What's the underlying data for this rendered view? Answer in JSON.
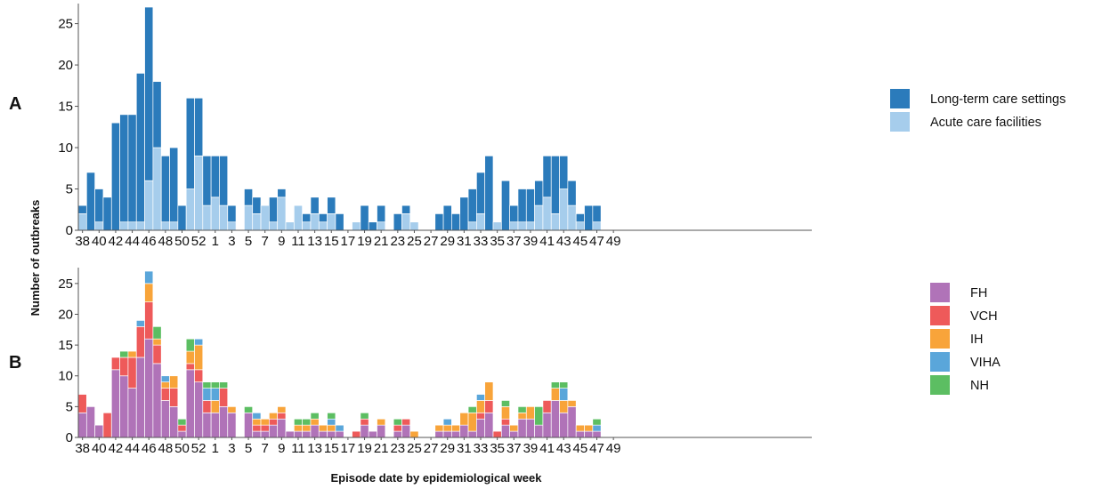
{
  "colors": {
    "ltc": "#2b7bbb",
    "acute": "#a6cdec",
    "FH": "#b073b8",
    "VCH": "#ee5a5a",
    "IH": "#f8a43a",
    "VIHA": "#5aa6da",
    "NH": "#5cbe62",
    "axis": "#555555",
    "bar_edge": "#ffffff"
  },
  "chart_data": [
    {
      "panel": "A",
      "type": "bar",
      "stacked": true,
      "ylabel": "Number of outbreaks",
      "xlabel": "Episode date by epidemiological week",
      "ylim": [
        0,
        27
      ],
      "yticks": [
        0,
        5,
        10,
        15,
        20,
        25
      ],
      "xtick_labels": [
        "38",
        "40",
        "42",
        "44",
        "46",
        "48",
        "50",
        "52",
        "1",
        "3",
        "5",
        "7",
        "9",
        "11",
        "13",
        "15",
        "17",
        "19",
        "21",
        "23",
        "25",
        "27",
        "29",
        "31",
        "33",
        "35",
        "37",
        "39",
        "41",
        "43",
        "45",
        "47",
        "49"
      ],
      "weeks": [
        "38",
        "39",
        "40",
        "41",
        "42",
        "43",
        "44",
        "45",
        "46",
        "47",
        "48",
        "49",
        "50",
        "51",
        "52",
        "53",
        "1",
        "2",
        "3",
        "4",
        "5",
        "6",
        "7",
        "8",
        "9",
        "10",
        "11",
        "12",
        "13",
        "14",
        "15",
        "16",
        "17",
        "18",
        "19",
        "20",
        "21",
        "22",
        "23",
        "24",
        "25",
        "26",
        "27",
        "28",
        "29",
        "30",
        "31",
        "32",
        "33",
        "34",
        "35",
        "36",
        "37",
        "38",
        "39",
        "40",
        "41",
        "42",
        "43",
        "44",
        "45",
        "46",
        "47",
        "48",
        "49"
      ],
      "series": [
        {
          "name": "Acute care facilities",
          "color_key": "acute",
          "values": [
            2,
            0,
            1,
            0,
            0,
            1,
            1,
            1,
            6,
            10,
            1,
            1,
            0,
            5,
            9,
            3,
            4,
            3,
            1,
            0,
            3,
            2,
            3,
            1,
            4,
            1,
            3,
            1,
            2,
            1,
            2,
            0,
            0,
            1,
            0,
            0,
            1,
            0,
            0,
            2,
            1,
            0,
            0,
            0,
            0,
            0,
            0,
            1,
            2,
            0,
            1,
            0,
            1,
            1,
            1,
            3,
            4,
            2,
            5,
            3,
            1,
            0,
            1,
            0,
            0
          ]
        },
        {
          "name": "Long-term care settings",
          "color_key": "ltc",
          "values": [
            1,
            7,
            4,
            4,
            13,
            13,
            13,
            18,
            21,
            8,
            8,
            9,
            3,
            11,
            7,
            6,
            5,
            6,
            2,
            0,
            2,
            2,
            0,
            3,
            1,
            0,
            0,
            1,
            2,
            1,
            2,
            2,
            0,
            0,
            3,
            1,
            2,
            0,
            2,
            1,
            0,
            0,
            0,
            2,
            3,
            2,
            4,
            4,
            5,
            9,
            0,
            6,
            2,
            4,
            4,
            3,
            5,
            7,
            4,
            3,
            1,
            3,
            2,
            0,
            0
          ]
        }
      ]
    },
    {
      "panel": "B",
      "type": "bar",
      "stacked": true,
      "ylim": [
        0,
        27
      ],
      "yticks": [
        0,
        5,
        10,
        15,
        20,
        25
      ],
      "xtick_labels": [
        "38",
        "40",
        "42",
        "44",
        "46",
        "48",
        "50",
        "52",
        "1",
        "3",
        "5",
        "7",
        "9",
        "11",
        "13",
        "15",
        "17",
        "19",
        "21",
        "23",
        "25",
        "27",
        "29",
        "31",
        "33",
        "35",
        "37",
        "39",
        "41",
        "43",
        "45",
        "47",
        "49"
      ],
      "series": [
        {
          "name": "FH",
          "color_key": "FH",
          "values": [
            4,
            5,
            2,
            0,
            11,
            10,
            8,
            13,
            16,
            12,
            6,
            5,
            1,
            11,
            9,
            4,
            4,
            5,
            4,
            0,
            4,
            1,
            1,
            2,
            3,
            1,
            1,
            1,
            2,
            1,
            1,
            1,
            0,
            0,
            2,
            1,
            2,
            0,
            1,
            2,
            0,
            0,
            0,
            1,
            1,
            1,
            2,
            1,
            3,
            4,
            0,
            2,
            1,
            3,
            3,
            2,
            4,
            6,
            4,
            5,
            1,
            1,
            1,
            0,
            0
          ]
        },
        {
          "name": "VCH",
          "color_key": "VCH",
          "values": [
            3,
            0,
            0,
            4,
            2,
            3,
            5,
            5,
            6,
            3,
            2,
            3,
            1,
            1,
            2,
            2,
            0,
            3,
            0,
            0,
            0,
            1,
            1,
            1,
            1,
            0,
            0,
            0,
            0,
            0,
            0,
            0,
            0,
            1,
            1,
            0,
            0,
            0,
            1,
            1,
            0,
            0,
            0,
            0,
            0,
            0,
            0,
            0,
            1,
            2,
            1,
            1,
            0,
            0,
            0,
            0,
            2,
            0,
            0,
            0,
            0,
            0,
            0,
            0,
            0
          ]
        },
        {
          "name": "IH",
          "color_key": "IH",
          "values": [
            0,
            0,
            0,
            0,
            0,
            0,
            1,
            0,
            3,
            1,
            1,
            2,
            0,
            2,
            4,
            0,
            2,
            0,
            1,
            0,
            0,
            1,
            1,
            1,
            1,
            0,
            1,
            1,
            1,
            1,
            1,
            0,
            0,
            0,
            0,
            0,
            1,
            0,
            0,
            0,
            1,
            0,
            0,
            1,
            1,
            1,
            2,
            3,
            2,
            3,
            0,
            2,
            1,
            1,
            2,
            0,
            0,
            2,
            2,
            1,
            1,
            1,
            0,
            0,
            0
          ]
        },
        {
          "name": "VIHA",
          "color_key": "VIHA",
          "values": [
            0,
            0,
            0,
            0,
            0,
            0,
            0,
            1,
            2,
            0,
            1,
            0,
            0,
            0,
            1,
            2,
            2,
            0,
            0,
            0,
            0,
            1,
            0,
            0,
            0,
            0,
            0,
            0,
            0,
            0,
            1,
            1,
            0,
            0,
            0,
            0,
            0,
            0,
            0,
            0,
            0,
            0,
            0,
            0,
            1,
            0,
            0,
            0,
            1,
            0,
            0,
            0,
            0,
            0,
            0,
            0,
            0,
            0,
            2,
            0,
            0,
            0,
            1,
            0,
            0
          ]
        },
        {
          "name": "NH",
          "color_key": "NH",
          "values": [
            0,
            0,
            0,
            0,
            0,
            1,
            0,
            0,
            0,
            2,
            0,
            0,
            1,
            2,
            0,
            1,
            1,
            1,
            0,
            0,
            1,
            0,
            0,
            0,
            0,
            0,
            1,
            1,
            1,
            0,
            1,
            0,
            0,
            0,
            1,
            0,
            0,
            0,
            1,
            0,
            0,
            0,
            0,
            0,
            0,
            0,
            0,
            1,
            0,
            0,
            0,
            1,
            0,
            1,
            0,
            3,
            0,
            1,
            1,
            0,
            0,
            0,
            1,
            0,
            0
          ]
        }
      ]
    }
  ],
  "legend_a": [
    {
      "label": "Long-term care settings",
      "color_key": "ltc"
    },
    {
      "label": "Acute care facilities",
      "color_key": "acute"
    }
  ],
  "legend_b": [
    {
      "label": "FH",
      "color_key": "FH"
    },
    {
      "label": "VCH",
      "color_key": "VCH"
    },
    {
      "label": "IH",
      "color_key": "IH"
    },
    {
      "label": "VIHA",
      "color_key": "VIHA"
    },
    {
      "label": "NH",
      "color_key": "NH"
    }
  ]
}
